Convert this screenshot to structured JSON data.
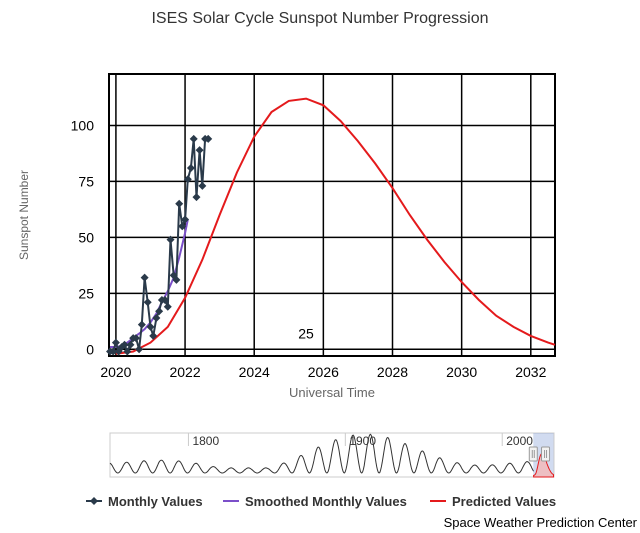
{
  "chart_data": {
    "type": "line",
    "title": "ISES Solar Cycle Sunspot Number Progression",
    "xlabel": "Universal Time",
    "ylabel": "Sunspot Number",
    "xlim": [
      2019.8,
      2032.7
    ],
    "ylim": [
      -3,
      123
    ],
    "x_ticks": [
      2020,
      2022,
      2024,
      2026,
      2028,
      2030,
      2032
    ],
    "x_tick_labels": [
      "2020",
      "2022",
      "2024",
      "2026",
      "2028",
      "2030",
      "2032"
    ],
    "y_ticks": [
      0,
      25,
      50,
      75,
      100
    ],
    "y_tick_labels": [
      "0",
      "25",
      "50",
      "75",
      "100"
    ],
    "grid": true,
    "legend_position": "bottom",
    "annotation": {
      "text": "25",
      "x": 2025.5,
      "y": 7
    },
    "credit": "Space Weather Prediction Center",
    "series": [
      {
        "name": "Monthly Values",
        "color": "#2a3a4a",
        "marker": "diamond",
        "x": [
          2019.83,
          2019.92,
          2020.0,
          2020.08,
          2020.17,
          2020.25,
          2020.33,
          2020.42,
          2020.5,
          2020.58,
          2020.67,
          2020.75,
          2020.83,
          2020.92,
          2021.0,
          2021.08,
          2021.17,
          2021.25,
          2021.33,
          2021.42,
          2021.5,
          2021.58,
          2021.67,
          2021.75,
          2021.83,
          2021.92,
          2022.0,
          2022.08,
          2022.17,
          2022.25,
          2022.33,
          2022.42,
          2022.5,
          2022.58,
          2022.67
        ],
        "values": [
          -1,
          -1,
          3,
          -1,
          1,
          2,
          -1,
          2,
          5,
          5,
          0,
          11,
          32,
          21,
          10,
          6,
          14,
          17,
          22,
          22,
          19,
          49,
          33,
          31,
          65,
          55,
          58,
          76,
          81,
          94,
          68,
          89,
          73,
          94,
          94
        ]
      },
      {
        "name": "Smoothed Monthly Values",
        "color": "#7b4fc9",
        "x": [
          2019.83,
          2020.0,
          2020.17,
          2020.33,
          2020.5,
          2020.67,
          2020.83,
          2021.0,
          2021.17,
          2021.33,
          2021.5,
          2021.67,
          2021.83,
          2022.0,
          2022.08
        ],
        "values": [
          1,
          1,
          1.5,
          3,
          5,
          7,
          9,
          12,
          16,
          21,
          26,
          32,
          41,
          52,
          58
        ]
      },
      {
        "name": "Predicted Values",
        "color": "#e41a1c",
        "x": [
          2020.0,
          2020.5,
          2021.0,
          2021.5,
          2022.0,
          2022.5,
          2023.0,
          2023.5,
          2024.0,
          2024.5,
          2025.0,
          2025.5,
          2026.0,
          2026.5,
          2027.0,
          2027.5,
          2028.0,
          2028.5,
          2029.0,
          2029.5,
          2030.0,
          2030.5,
          2031.0,
          2031.5,
          2032.0,
          2032.5,
          2032.7
        ],
        "values": [
          -2,
          -1,
          3,
          10,
          23,
          40,
          60,
          79,
          95,
          106,
          111,
          112,
          109,
          102,
          93,
          83,
          72,
          60,
          49,
          39,
          30,
          22,
          15,
          10,
          6,
          3,
          2
        ]
      }
    ]
  },
  "navigator": {
    "labels": [
      "1800",
      "1900",
      "2000"
    ],
    "xlim": [
      1750,
      2033
    ],
    "selection": [
      2019.8,
      2032.7
    ]
  }
}
